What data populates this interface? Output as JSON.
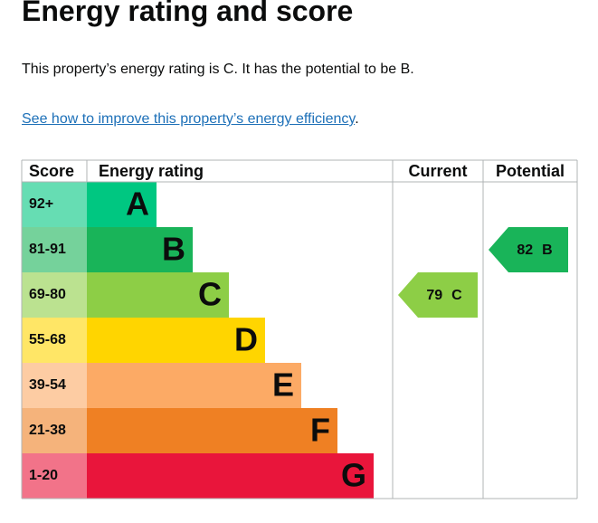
{
  "heading": "Energy rating and score",
  "intro": "This property’s energy rating is C. It has the potential to be B.",
  "link": {
    "text": "See how to improve this property’s energy efficiency",
    "after": "."
  },
  "table": {
    "headers": [
      "Score",
      "Energy rating",
      "Current",
      "Potential"
    ],
    "rows": [
      {
        "score": "92+",
        "band": "A",
        "color": "#00c781"
      },
      {
        "score": "81-91",
        "band": "B",
        "color": "#19b459"
      },
      {
        "score": "69-80",
        "band": "C",
        "color": "#8dce46"
      },
      {
        "score": "55-68",
        "band": "D",
        "color": "#ffd500"
      },
      {
        "score": "39-54",
        "band": "E",
        "color": "#fcaa65"
      },
      {
        "score": "21-38",
        "band": "F",
        "color": "#ef8023"
      },
      {
        "score": "1-20",
        "band": "G",
        "color": "#e9153b"
      }
    ],
    "current": {
      "score": 79,
      "band": "C"
    },
    "potential": {
      "score": 82,
      "band": "B"
    }
  }
}
